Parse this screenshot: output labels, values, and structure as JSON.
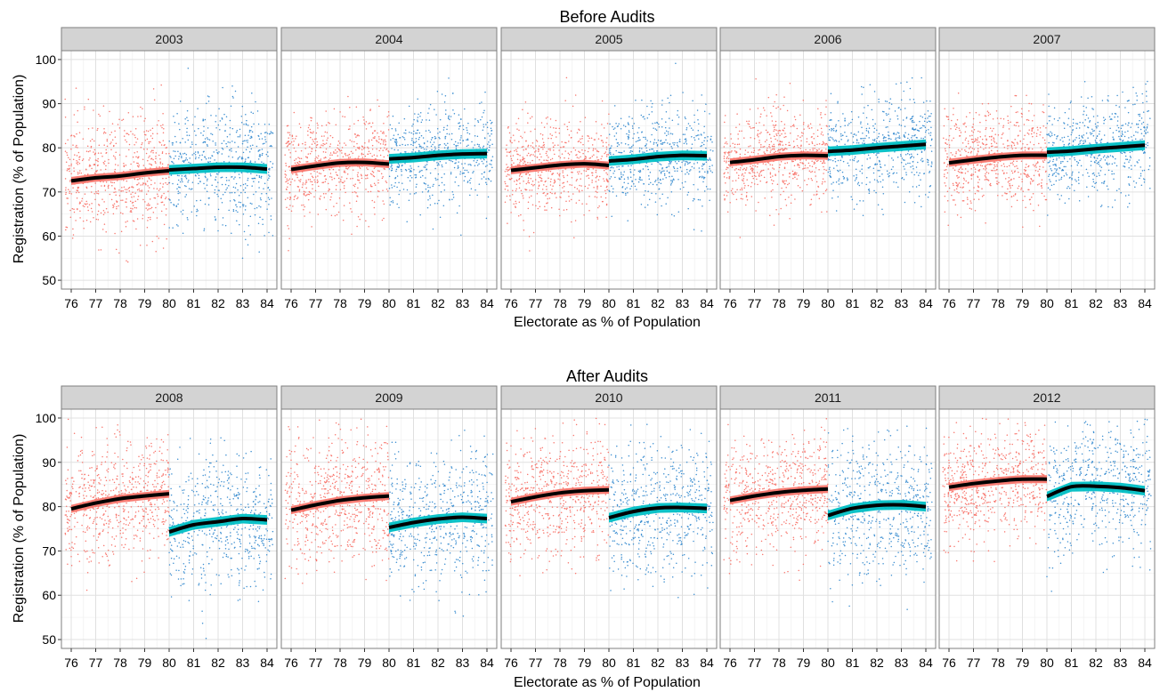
{
  "colors": {
    "left_points": "#f8766d",
    "right_points": "#3d8fd1",
    "left_ribbon": "#f8766d",
    "right_ribbon": "#00bfc4",
    "fit_line": "#000000",
    "strip_fill": "#d3d3d3",
    "grid_major": "#e0e0e0",
    "grid_minor": "#f2f2f2",
    "panel_border": "#7f7f7f"
  },
  "chart_data": [
    {
      "type": "scatter",
      "title": "Before Audits",
      "xlabel": "Electorate as % of Population",
      "ylabel": "Registration (% of Population)",
      "xlim": [
        75.6,
        84.4
      ],
      "ylim": [
        48,
        102
      ],
      "x_ticks": [
        "76",
        "77",
        "78",
        "79",
        "80",
        "81",
        "82",
        "83",
        "84"
      ],
      "y_ticks": [
        "50",
        "60",
        "70",
        "80",
        "90",
        "100"
      ],
      "cutoff": 80,
      "panels": [
        {
          "label": "2003",
          "left_fit": [
            [
              76,
              72.5
            ],
            [
              77,
              73.2
            ],
            [
              78,
              73.6
            ],
            [
              79,
              74.3
            ],
            [
              80,
              74.8
            ]
          ],
          "right_fit": [
            [
              80,
              75.0
            ],
            [
              81,
              75.3
            ],
            [
              82,
              75.6
            ],
            [
              83,
              75.6
            ],
            [
              84,
              75.2
            ]
          ],
          "left_points": {
            "n": 620,
            "center": 73.5,
            "spread": 8.0
          },
          "right_points": {
            "n": 560,
            "center": 75.3,
            "spread": 8.5
          }
        },
        {
          "label": "2004",
          "left_fit": [
            [
              76,
              75.1
            ],
            [
              77,
              75.9
            ],
            [
              78,
              76.6
            ],
            [
              79,
              76.7
            ],
            [
              80,
              76.3
            ]
          ],
          "right_fit": [
            [
              80,
              77.5
            ],
            [
              81,
              77.8
            ],
            [
              82,
              78.3
            ],
            [
              83,
              78.6
            ],
            [
              84,
              78.7
            ]
          ],
          "left_points": {
            "n": 620,
            "center": 76.2,
            "spread": 6.5
          },
          "right_points": {
            "n": 560,
            "center": 78.3,
            "spread": 6.5
          }
        },
        {
          "label": "2005",
          "left_fit": [
            [
              76,
              74.9
            ],
            [
              77,
              75.5
            ],
            [
              78,
              76.1
            ],
            [
              79,
              76.4
            ],
            [
              80,
              76.0
            ]
          ],
          "right_fit": [
            [
              80,
              77.0
            ],
            [
              81,
              77.4
            ],
            [
              82,
              78.0
            ],
            [
              83,
              78.3
            ],
            [
              84,
              78.2
            ]
          ],
          "left_points": {
            "n": 620,
            "center": 75.9,
            "spread": 6.5
          },
          "right_points": {
            "n": 560,
            "center": 77.8,
            "spread": 6.5
          }
        },
        {
          "label": "2006",
          "left_fit": [
            [
              76,
              76.7
            ],
            [
              77,
              77.3
            ],
            [
              78,
              78.0
            ],
            [
              79,
              78.3
            ],
            [
              80,
              78.2
            ]
          ],
          "right_fit": [
            [
              80,
              79.2
            ],
            [
              81,
              79.5
            ],
            [
              82,
              80.0
            ],
            [
              83,
              80.4
            ],
            [
              84,
              80.8
            ]
          ],
          "left_points": {
            "n": 620,
            "center": 77.8,
            "spread": 6.5
          },
          "right_points": {
            "n": 560,
            "center": 80.0,
            "spread": 6.5
          }
        },
        {
          "label": "2007",
          "left_fit": [
            [
              76,
              76.6
            ],
            [
              77,
              77.3
            ],
            [
              78,
              77.9
            ],
            [
              79,
              78.3
            ],
            [
              80,
              78.3
            ]
          ],
          "right_fit": [
            [
              80,
              79.0
            ],
            [
              81,
              79.3
            ],
            [
              82,
              79.8
            ],
            [
              83,
              80.2
            ],
            [
              84,
              80.6
            ]
          ],
          "left_points": {
            "n": 620,
            "center": 77.7,
            "spread": 6.5
          },
          "right_points": {
            "n": 560,
            "center": 79.8,
            "spread": 6.5
          }
        }
      ]
    },
    {
      "type": "scatter",
      "title": "After Audits",
      "xlabel": "Electorate as % of Population",
      "ylabel": "Registration (% of Population)",
      "xlim": [
        75.6,
        84.4
      ],
      "ylim": [
        48,
        102
      ],
      "x_ticks": [
        "76",
        "77",
        "78",
        "79",
        "80",
        "81",
        "82",
        "83",
        "84"
      ],
      "y_ticks": [
        "50",
        "60",
        "70",
        "80",
        "90",
        "100"
      ],
      "cutoff": 80,
      "panels": [
        {
          "label": "2008",
          "left_fit": [
            [
              76,
              79.5
            ],
            [
              77,
              80.8
            ],
            [
              78,
              81.8
            ],
            [
              79,
              82.4
            ],
            [
              80,
              82.9
            ]
          ],
          "right_fit": [
            [
              80,
              74.3
            ],
            [
              81,
              75.9
            ],
            [
              82,
              76.6
            ],
            [
              83,
              77.3
            ],
            [
              84,
              77.0
            ]
          ],
          "left_points": {
            "n": 620,
            "center": 81.5,
            "spread": 8.0
          },
          "right_points": {
            "n": 560,
            "center": 76.5,
            "spread": 9.0
          }
        },
        {
          "label": "2009",
          "left_fit": [
            [
              76,
              79.2
            ],
            [
              77,
              80.4
            ],
            [
              78,
              81.4
            ],
            [
              79,
              82.0
            ],
            [
              80,
              82.4
            ]
          ],
          "right_fit": [
            [
              80,
              75.3
            ],
            [
              81,
              76.4
            ],
            [
              82,
              77.2
            ],
            [
              83,
              77.6
            ],
            [
              84,
              77.3
            ]
          ],
          "left_points": {
            "n": 620,
            "center": 81.0,
            "spread": 8.0
          },
          "right_points": {
            "n": 560,
            "center": 76.8,
            "spread": 9.0
          }
        },
        {
          "label": "2010",
          "left_fit": [
            [
              76,
              81.1
            ],
            [
              77,
              82.2
            ],
            [
              78,
              83.1
            ],
            [
              79,
              83.6
            ],
            [
              80,
              83.8
            ]
          ],
          "right_fit": [
            [
              80,
              77.5
            ],
            [
              81,
              78.9
            ],
            [
              82,
              79.7
            ],
            [
              83,
              79.8
            ],
            [
              84,
              79.6
            ]
          ],
          "left_points": {
            "n": 620,
            "center": 83.0,
            "spread": 8.0
          },
          "right_points": {
            "n": 560,
            "center": 79.0,
            "spread": 9.0
          }
        },
        {
          "label": "2011",
          "left_fit": [
            [
              76,
              81.4
            ],
            [
              77,
              82.4
            ],
            [
              78,
              83.2
            ],
            [
              79,
              83.7
            ],
            [
              80,
              84.0
            ]
          ],
          "right_fit": [
            [
              80,
              78.0
            ],
            [
              81,
              79.6
            ],
            [
              82,
              80.3
            ],
            [
              83,
              80.4
            ],
            [
              84,
              80.0
            ]
          ],
          "left_points": {
            "n": 620,
            "center": 83.0,
            "spread": 8.0
          },
          "right_points": {
            "n": 560,
            "center": 79.5,
            "spread": 9.0
          }
        },
        {
          "label": "2012",
          "left_fit": [
            [
              76,
              84.4
            ],
            [
              77,
              85.2
            ],
            [
              78,
              85.8
            ],
            [
              79,
              86.2
            ],
            [
              80,
              86.2
            ]
          ],
          "right_fit": [
            [
              80,
              82.3
            ],
            [
              81,
              84.5
            ],
            [
              82,
              84.6
            ],
            [
              83,
              84.3
            ],
            [
              84,
              83.6
            ]
          ],
          "left_points": {
            "n": 620,
            "center": 85.5,
            "spread": 7.5
          },
          "right_points": {
            "n": 560,
            "center": 83.5,
            "spread": 8.5
          }
        }
      ]
    }
  ]
}
